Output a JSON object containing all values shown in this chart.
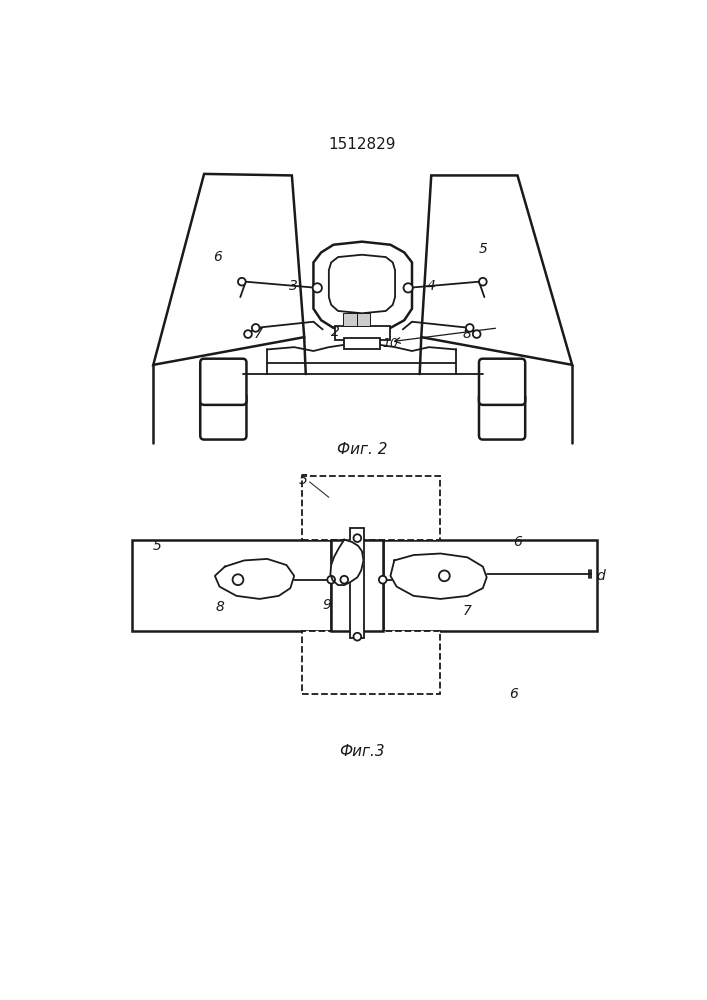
{
  "title": "1512829",
  "fig2_label": "Фиг. 2",
  "fig3_label": "Фиг.3",
  "bg_color": "#ffffff",
  "line_color": "#1a1a1a"
}
